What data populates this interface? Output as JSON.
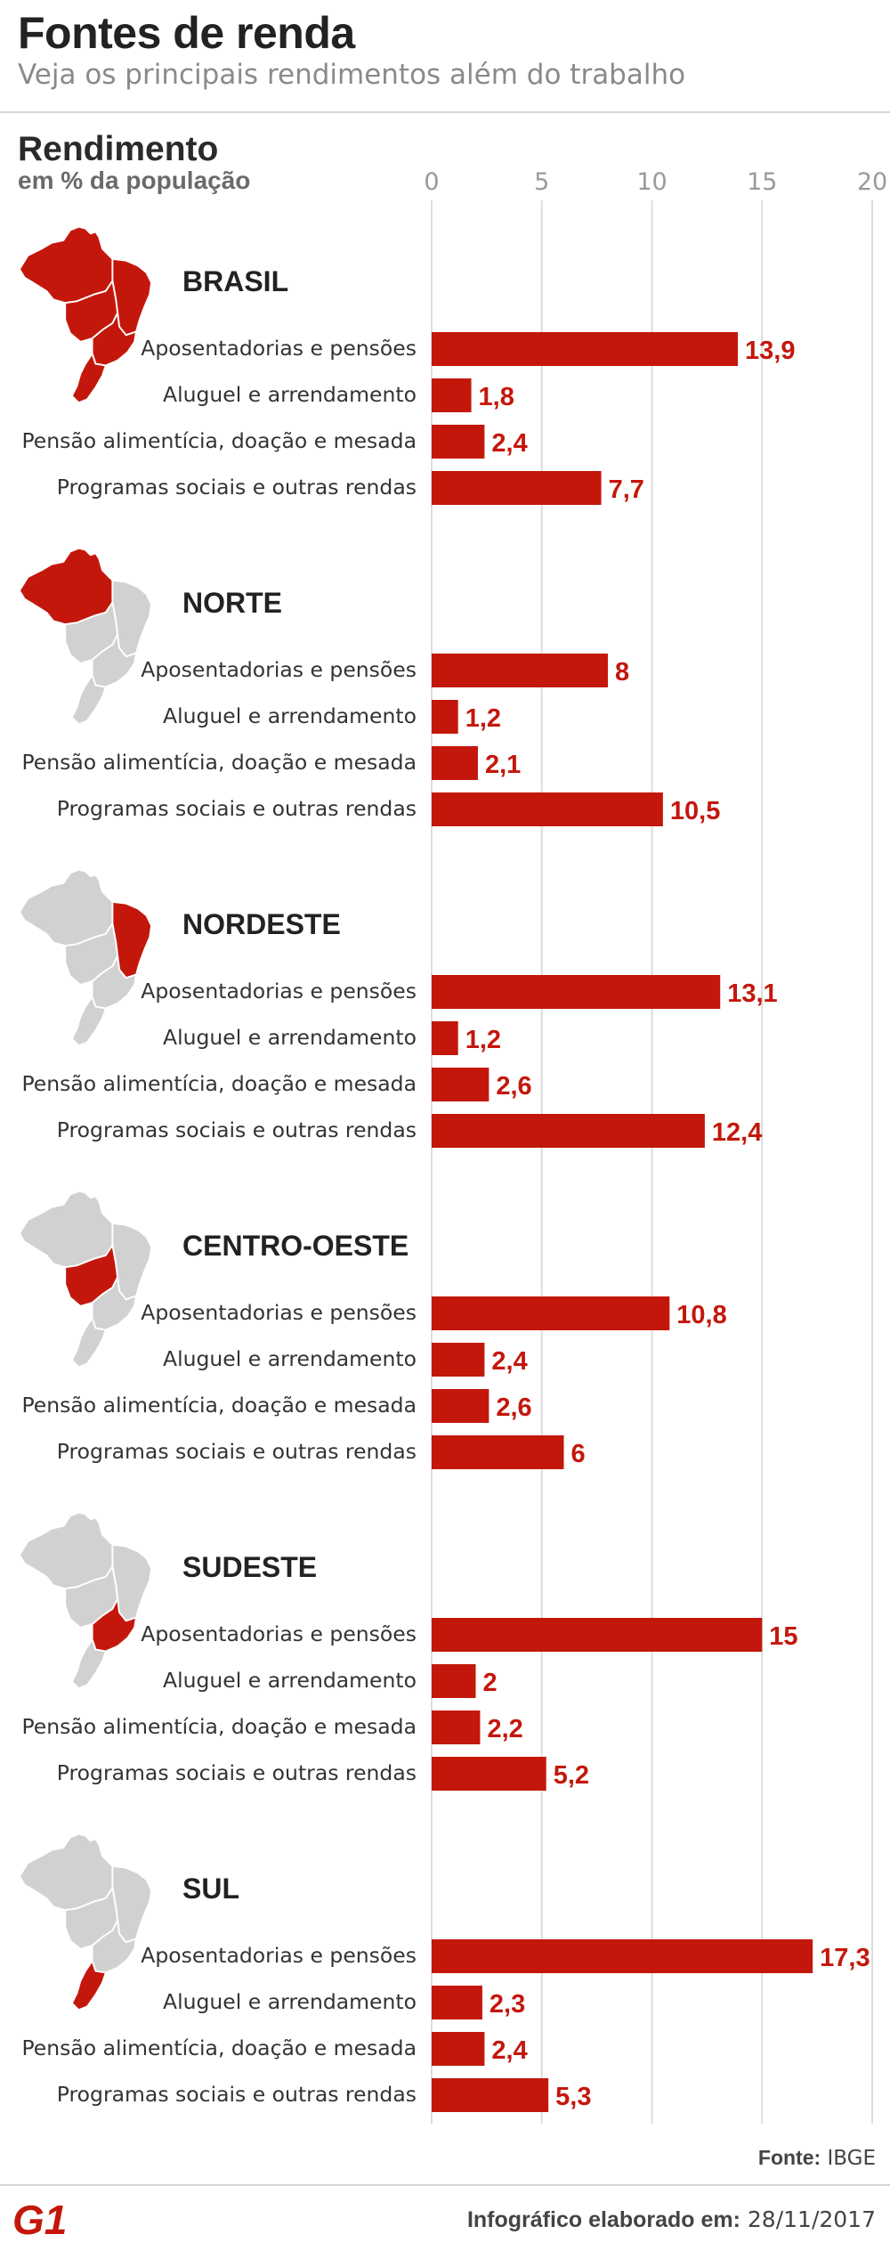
{
  "header": {
    "title": "Fontes de renda",
    "subtitle": "Veja os principais rendimentos além do trabalho"
  },
  "chart_data": {
    "type": "bar",
    "orientation": "horizontal",
    "axis_title": "Rendimento",
    "axis_unit": "em % da população",
    "xlim": [
      0,
      20
    ],
    "ticks": [
      "0",
      "5",
      "10",
      "15",
      "20"
    ],
    "grid": true,
    "bar_color": "#c4170c",
    "label_color": "#c4170c",
    "map_highlight_color": "#c4170c",
    "map_base_color": "#d1d1d1",
    "categories": [
      "Aposentadorias e pensões",
      "Aluguel e arrendamento",
      "Pensão alimentícia, doação e mesada",
      "Programas sociais e outras rendas"
    ],
    "groups": [
      {
        "name": "BRASIL",
        "values": [
          13.9,
          1.8,
          2.4,
          7.7
        ],
        "labels": [
          "13,9",
          "1,8",
          "2,4",
          "7,7"
        ]
      },
      {
        "name": "NORTE",
        "values": [
          8,
          1.2,
          2.1,
          10.5
        ],
        "labels": [
          "8",
          "1,2",
          "2,1",
          "10,5"
        ]
      },
      {
        "name": "NORDESTE",
        "values": [
          13.1,
          1.2,
          2.6,
          12.4
        ],
        "labels": [
          "13,1",
          "1,2",
          "2,6",
          "12,4"
        ]
      },
      {
        "name": "CENTRO-OESTE",
        "values": [
          10.8,
          2.4,
          2.6,
          6
        ],
        "labels": [
          "10,8",
          "2,4",
          "2,6",
          "6"
        ]
      },
      {
        "name": "SUDESTE",
        "values": [
          15,
          2,
          2.2,
          5.2
        ],
        "labels": [
          "15",
          "2",
          "2,2",
          "5,2"
        ]
      },
      {
        "name": "SUL",
        "values": [
          17.3,
          2.3,
          2.4,
          5.3
        ],
        "labels": [
          "17,3",
          "2,3",
          "2,4",
          "5,3"
        ]
      }
    ]
  },
  "footer": {
    "source_label": "Fonte:",
    "source_value": "IBGE",
    "credit_label": "Infográfico elaborado em:",
    "credit_value": "28/11/2017",
    "logo_text": "G1",
    "logo_icon": "g1-logo-icon"
  }
}
